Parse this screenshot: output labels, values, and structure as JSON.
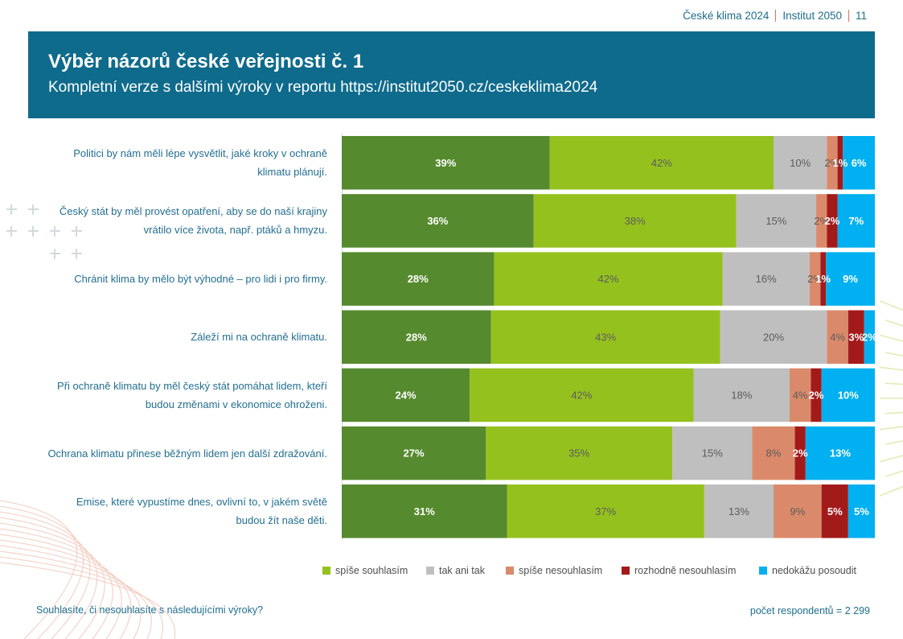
{
  "header": {
    "report_name": "České klima 2024",
    "organization": "Institut 2050",
    "page_number": "11"
  },
  "banner": {
    "title": "Výběr názorů české veřejnosti č. 1",
    "subtitle": "Kompletní verze s dalšími výroky v reportu https://institut2050.cz/ceskeklima2024"
  },
  "chart_data": {
    "type": "bar",
    "horizontal": true,
    "stacked": true,
    "xlim": [
      0,
      100
    ],
    "categories": [
      "Politici by nám měli lépe vysvětlit, jaké kroky v ochraně\nklimatu plánují.",
      "Český stát by měl provést opatření, aby se do naší krajiny\nvrátilo více života, např. ptáků a hmyzu.",
      "Chránit klima by mělo být výhodné – pro lidi i pro firmy.",
      "Záleží mi na ochraně klimatu.",
      "Při ochraně klimatu by měl český stát pomáhat lidem, kteří\nbudou změnami v ekonomice ohroženi.",
      "Ochrana klimatu přinese běžným lidem jen další zdražování.",
      "Emise, které vypustíme dnes, ovlivní to, v jakém světě\nbudou žít naše děti."
    ],
    "series": [
      {
        "color": "#568A2E",
        "values": [
          39,
          36,
          28,
          28,
          24,
          27,
          31
        ],
        "labels": [
          "39%",
          "36%",
          "28%",
          "28%",
          "24%",
          "27%",
          "31%"
        ]
      },
      {
        "name": "spíše souhlasím",
        "color": "#95C11F",
        "values": [
          42,
          38,
          42,
          43,
          42,
          35,
          37
        ],
        "labels": [
          "42%",
          "38%",
          "42%",
          "43%",
          "42%",
          "35%",
          "37%"
        ]
      },
      {
        "name": "tak ani tak",
        "color": "#BFBFBF",
        "values": [
          10,
          15,
          16,
          20,
          18,
          15,
          13
        ],
        "labels": [
          "10%",
          "15%",
          "16%",
          "20%",
          "18%",
          "15%",
          "13%"
        ]
      },
      {
        "name": "spíše nesouhlasím",
        "color": "#DA8A6B",
        "values": [
          2,
          2,
          2,
          4,
          4,
          8,
          9
        ],
        "labels": [
          "2%",
          "2%",
          "2%",
          "4%",
          "4%",
          "8%",
          "9%"
        ]
      },
      {
        "name": "rozhodně nesouhlasím",
        "color": "#A31A1A",
        "values": [
          1,
          2,
          1,
          3,
          2,
          2,
          5
        ],
        "labels": [
          "1%",
          "2%",
          "1%",
          "3%",
          "2%",
          "2%",
          "5%"
        ]
      },
      {
        "name": "nedokážu posoudit",
        "color": "#00B0F0",
        "values": [
          6,
          7,
          9,
          2,
          10,
          13,
          5
        ],
        "labels": [
          "6%",
          "7%",
          "9%",
          "2%",
          "10%",
          "13%",
          "5%"
        ]
      }
    ]
  },
  "footer": {
    "question": "Souhlasíte, či nesouhlasíte s následujícími výroky?",
    "respondents": "počet respondentů = 2 299"
  }
}
